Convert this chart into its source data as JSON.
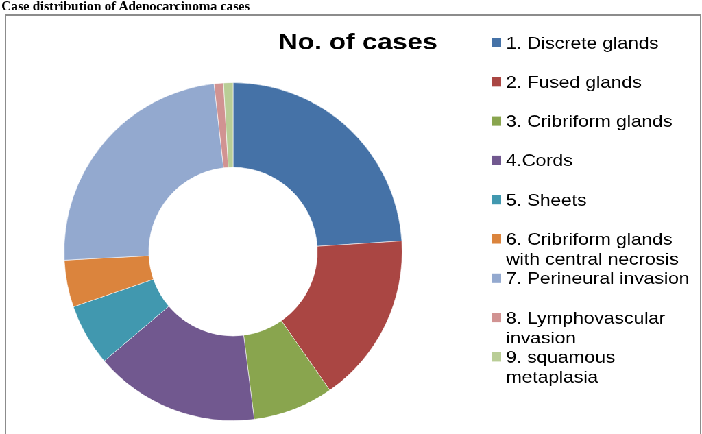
{
  "chart_data": {
    "type": "donut",
    "title": "No. of cases",
    "annotations": [
      "Case distribution of Adenocarcinoma cases"
    ],
    "categories": [
      "1. Discrete glands",
      "2. Fused glands",
      "3. Cribriform glands",
      "4.Cords",
      "5. Sheets",
      "6. Cribriform glands with central necrosis",
      "7. Perineural invasion",
      "8. Lymphovascular invasion",
      "9. squamous metaplasia"
    ],
    "values": [
      24,
      16.3,
      7.7,
      15.8,
      5.9,
      4.5,
      24,
      0.9,
      0.9
    ],
    "colors": [
      "#4572a7",
      "#aa4643",
      "#89a54e",
      "#71588f",
      "#4198af",
      "#db843d",
      "#93a9cf",
      "#d19392",
      "#b9cd96"
    ],
    "legend": "right"
  }
}
